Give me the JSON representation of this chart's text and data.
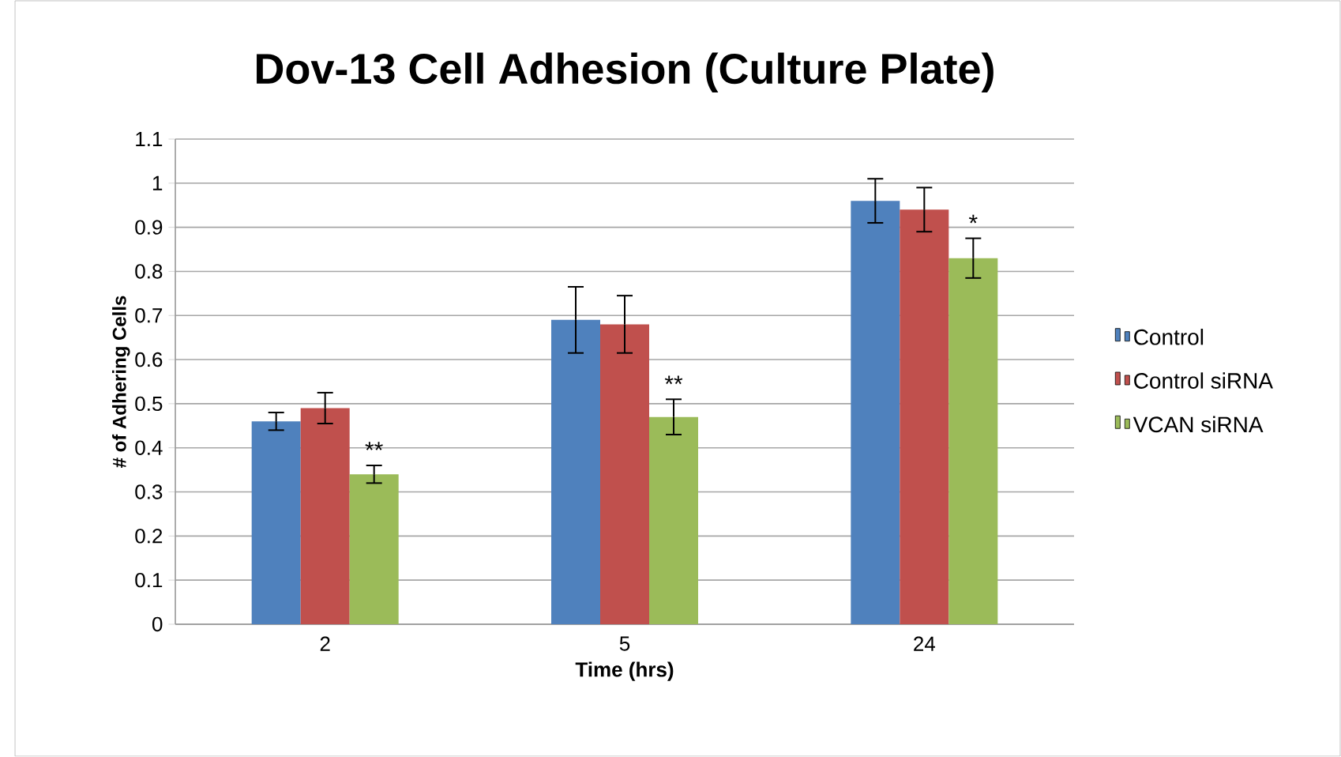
{
  "chart_data": {
    "type": "bar",
    "title": "Dov-13 Cell Adhesion (Culture Plate)",
    "xlabel": "Time (hrs)",
    "ylabel": "# of Adhering Cells",
    "categories": [
      "2",
      "5",
      "24"
    ],
    "series": [
      {
        "name": "Control",
        "color": "#4f81bd",
        "values": [
          0.46,
          0.69,
          0.96
        ],
        "errors": [
          0.02,
          0.075,
          0.05
        ]
      },
      {
        "name": "Control siRNA",
        "color": "#c0504d",
        "values": [
          0.49,
          0.68,
          0.94
        ],
        "errors": [
          0.035,
          0.065,
          0.05
        ]
      },
      {
        "name": "VCAN siRNA",
        "color": "#9bbb59",
        "values": [
          0.34,
          0.47,
          0.83
        ],
        "errors": [
          0.02,
          0.04,
          0.045
        ]
      }
    ],
    "ylim": [
      0,
      1.1
    ],
    "yticks": [
      0,
      0.1,
      0.2,
      0.3,
      0.4,
      0.5,
      0.6,
      0.7,
      0.8,
      0.9,
      1,
      1.1
    ],
    "grid": "y",
    "legend": "right",
    "annotations": [
      "**",
      "**",
      "*"
    ]
  }
}
